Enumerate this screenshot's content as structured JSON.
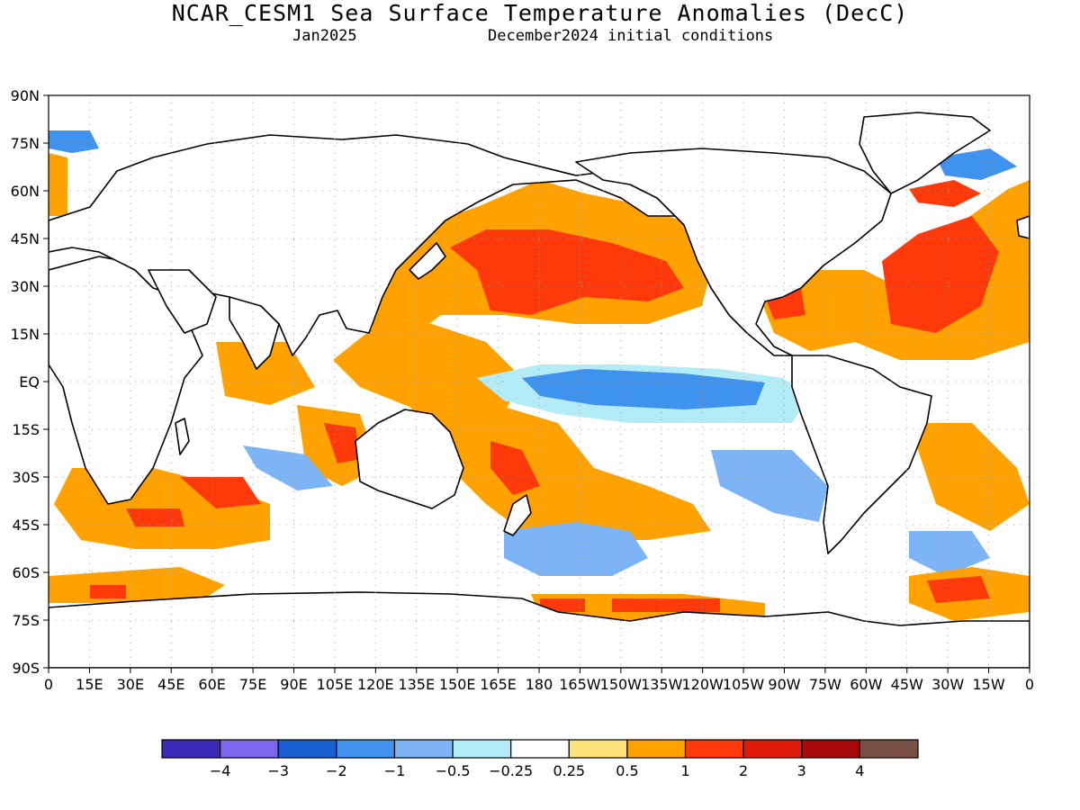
{
  "title": "NCAR_CESM1 Sea Surface Temperature Anomalies (DecC)",
  "subtitle_left": "Jan2025",
  "subtitle_right": "December2024 initial conditions",
  "lat_labels": [
    "90N",
    "75N",
    "60N",
    "45N",
    "30N",
    "15N",
    "EQ",
    "15S",
    "30S",
    "45S",
    "60S",
    "75S",
    "90S"
  ],
  "lon_labels": [
    "0",
    "15E",
    "30E",
    "45E",
    "60E",
    "75E",
    "90E",
    "105E",
    "120E",
    "135E",
    "150E",
    "165E",
    "180",
    "165W",
    "150W",
    "135W",
    "120W",
    "105W",
    "90W",
    "75W",
    "60W",
    "45W",
    "30W",
    "15W",
    "0"
  ],
  "colorbar": {
    "colors": [
      "#3d2ab8",
      "#7b68ee",
      "#1a5fd1",
      "#3f93ee",
      "#7db4f5",
      "#b3ecf7",
      "#ffffff",
      "#ffe27a",
      "#ffa200",
      "#ff3a0a",
      "#de1a08",
      "#a60808",
      "#7a5045"
    ],
    "labels": [
      "−4",
      "−3",
      "−2",
      "−1",
      "−0.5",
      "−0.25",
      "0.25",
      "0.5",
      "1",
      "2",
      "3",
      "4"
    ]
  },
  "colors": {
    "land": "#ffffff",
    "coast": "#000000",
    "grid": "#9a9a9a"
  }
}
